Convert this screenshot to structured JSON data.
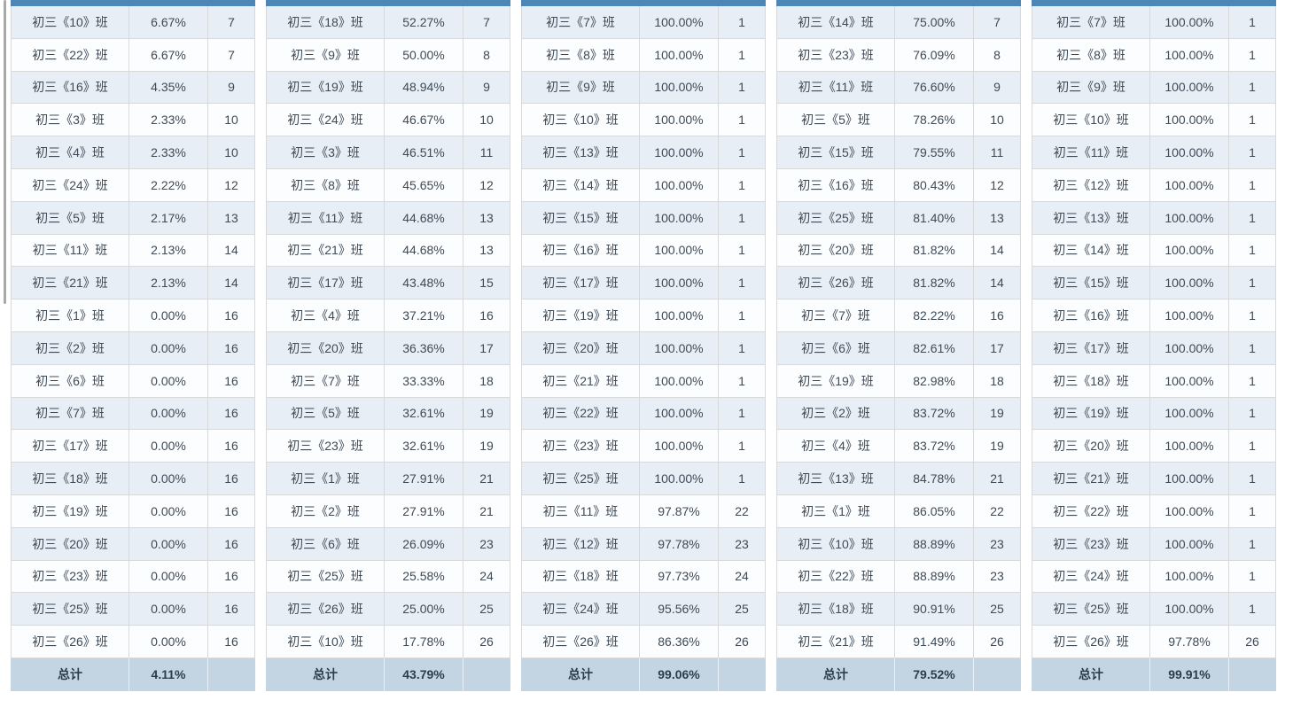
{
  "colors": {
    "table_header_bar": "#4E86B8",
    "row_bg": "#FCFDFE",
    "row_alt_bg": "#E7EEF6",
    "total_row_bg": "#C3D5E3",
    "cell_border": "#D9D9D9",
    "text": "#3E4A56"
  },
  "tables": [
    {
      "total_label": "总计",
      "total_value": "4.11%",
      "rows": [
        [
          "初三《10》班",
          "6.67%",
          "7"
        ],
        [
          "初三《22》班",
          "6.67%",
          "7"
        ],
        [
          "初三《16》班",
          "4.35%",
          "9"
        ],
        [
          "初三《3》班",
          "2.33%",
          "10"
        ],
        [
          "初三《4》班",
          "2.33%",
          "10"
        ],
        [
          "初三《24》班",
          "2.22%",
          "12"
        ],
        [
          "初三《5》班",
          "2.17%",
          "13"
        ],
        [
          "初三《11》班",
          "2.13%",
          "14"
        ],
        [
          "初三《21》班",
          "2.13%",
          "14"
        ],
        [
          "初三《1》班",
          "0.00%",
          "16"
        ],
        [
          "初三《2》班",
          "0.00%",
          "16"
        ],
        [
          "初三《6》班",
          "0.00%",
          "16"
        ],
        [
          "初三《7》班",
          "0.00%",
          "16"
        ],
        [
          "初三《17》班",
          "0.00%",
          "16"
        ],
        [
          "初三《18》班",
          "0.00%",
          "16"
        ],
        [
          "初三《19》班",
          "0.00%",
          "16"
        ],
        [
          "初三《20》班",
          "0.00%",
          "16"
        ],
        [
          "初三《23》班",
          "0.00%",
          "16"
        ],
        [
          "初三《25》班",
          "0.00%",
          "16"
        ],
        [
          "初三《26》班",
          "0.00%",
          "16"
        ]
      ]
    },
    {
      "total_label": "总计",
      "total_value": "43.79%",
      "rows": [
        [
          "初三《18》班",
          "52.27%",
          "7"
        ],
        [
          "初三《9》班",
          "50.00%",
          "8"
        ],
        [
          "初三《19》班",
          "48.94%",
          "9"
        ],
        [
          "初三《24》班",
          "46.67%",
          "10"
        ],
        [
          "初三《3》班",
          "46.51%",
          "11"
        ],
        [
          "初三《8》班",
          "45.65%",
          "12"
        ],
        [
          "初三《11》班",
          "44.68%",
          "13"
        ],
        [
          "初三《21》班",
          "44.68%",
          "13"
        ],
        [
          "初三《17》班",
          "43.48%",
          "15"
        ],
        [
          "初三《4》班",
          "37.21%",
          "16"
        ],
        [
          "初三《20》班",
          "36.36%",
          "17"
        ],
        [
          "初三《7》班",
          "33.33%",
          "18"
        ],
        [
          "初三《5》班",
          "32.61%",
          "19"
        ],
        [
          "初三《23》班",
          "32.61%",
          "19"
        ],
        [
          "初三《1》班",
          "27.91%",
          "21"
        ],
        [
          "初三《2》班",
          "27.91%",
          "21"
        ],
        [
          "初三《6》班",
          "26.09%",
          "23"
        ],
        [
          "初三《25》班",
          "25.58%",
          "24"
        ],
        [
          "初三《26》班",
          "25.00%",
          "25"
        ],
        [
          "初三《10》班",
          "17.78%",
          "26"
        ]
      ]
    },
    {
      "total_label": "总计",
      "total_value": "99.06%",
      "rows": [
        [
          "初三《7》班",
          "100.00%",
          "1"
        ],
        [
          "初三《8》班",
          "100.00%",
          "1"
        ],
        [
          "初三《9》班",
          "100.00%",
          "1"
        ],
        [
          "初三《10》班",
          "100.00%",
          "1"
        ],
        [
          "初三《13》班",
          "100.00%",
          "1"
        ],
        [
          "初三《14》班",
          "100.00%",
          "1"
        ],
        [
          "初三《15》班",
          "100.00%",
          "1"
        ],
        [
          "初三《16》班",
          "100.00%",
          "1"
        ],
        [
          "初三《17》班",
          "100.00%",
          "1"
        ],
        [
          "初三《19》班",
          "100.00%",
          "1"
        ],
        [
          "初三《20》班",
          "100.00%",
          "1"
        ],
        [
          "初三《21》班",
          "100.00%",
          "1"
        ],
        [
          "初三《22》班",
          "100.00%",
          "1"
        ],
        [
          "初三《23》班",
          "100.00%",
          "1"
        ],
        [
          "初三《25》班",
          "100.00%",
          "1"
        ],
        [
          "初三《11》班",
          "97.87%",
          "22"
        ],
        [
          "初三《12》班",
          "97.78%",
          "23"
        ],
        [
          "初三《18》班",
          "97.73%",
          "24"
        ],
        [
          "初三《24》班",
          "95.56%",
          "25"
        ],
        [
          "初三《26》班",
          "86.36%",
          "26"
        ]
      ]
    },
    {
      "total_label": "总计",
      "total_value": "79.52%",
      "rows": [
        [
          "初三《14》班",
          "75.00%",
          "7"
        ],
        [
          "初三《23》班",
          "76.09%",
          "8"
        ],
        [
          "初三《11》班",
          "76.60%",
          "9"
        ],
        [
          "初三《5》班",
          "78.26%",
          "10"
        ],
        [
          "初三《15》班",
          "79.55%",
          "11"
        ],
        [
          "初三《16》班",
          "80.43%",
          "12"
        ],
        [
          "初三《25》班",
          "81.40%",
          "13"
        ],
        [
          "初三《20》班",
          "81.82%",
          "14"
        ],
        [
          "初三《26》班",
          "81.82%",
          "14"
        ],
        [
          "初三《7》班",
          "82.22%",
          "16"
        ],
        [
          "初三《6》班",
          "82.61%",
          "17"
        ],
        [
          "初三《19》班",
          "82.98%",
          "18"
        ],
        [
          "初三《2》班",
          "83.72%",
          "19"
        ],
        [
          "初三《4》班",
          "83.72%",
          "19"
        ],
        [
          "初三《13》班",
          "84.78%",
          "21"
        ],
        [
          "初三《1》班",
          "86.05%",
          "22"
        ],
        [
          "初三《10》班",
          "88.89%",
          "23"
        ],
        [
          "初三《22》班",
          "88.89%",
          "23"
        ],
        [
          "初三《18》班",
          "90.91%",
          "25"
        ],
        [
          "初三《21》班",
          "91.49%",
          "26"
        ]
      ]
    },
    {
      "total_label": "总计",
      "total_value": "99.91%",
      "rows": [
        [
          "初三《7》班",
          "100.00%",
          "1"
        ],
        [
          "初三《8》班",
          "100.00%",
          "1"
        ],
        [
          "初三《9》班",
          "100.00%",
          "1"
        ],
        [
          "初三《10》班",
          "100.00%",
          "1"
        ],
        [
          "初三《11》班",
          "100.00%",
          "1"
        ],
        [
          "初三《12》班",
          "100.00%",
          "1"
        ],
        [
          "初三《13》班",
          "100.00%",
          "1"
        ],
        [
          "初三《14》班",
          "100.00%",
          "1"
        ],
        [
          "初三《15》班",
          "100.00%",
          "1"
        ],
        [
          "初三《16》班",
          "100.00%",
          "1"
        ],
        [
          "初三《17》班",
          "100.00%",
          "1"
        ],
        [
          "初三《18》班",
          "100.00%",
          "1"
        ],
        [
          "初三《19》班",
          "100.00%",
          "1"
        ],
        [
          "初三《20》班",
          "100.00%",
          "1"
        ],
        [
          "初三《21》班",
          "100.00%",
          "1"
        ],
        [
          "初三《22》班",
          "100.00%",
          "1"
        ],
        [
          "初三《23》班",
          "100.00%",
          "1"
        ],
        [
          "初三《24》班",
          "100.00%",
          "1"
        ],
        [
          "初三《25》班",
          "100.00%",
          "1"
        ],
        [
          "初三《26》班",
          "97.78%",
          "26"
        ]
      ]
    }
  ]
}
